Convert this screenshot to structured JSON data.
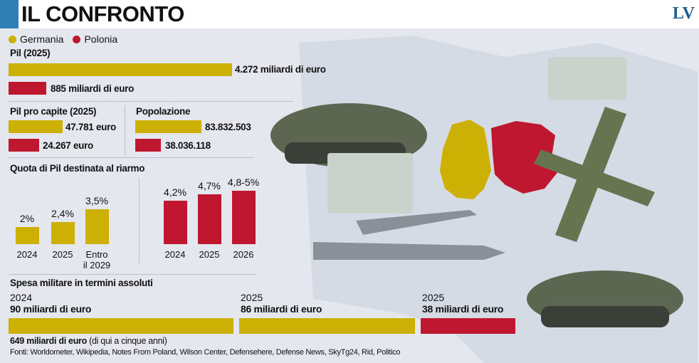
{
  "header": {
    "title": "IL CONFRONTO",
    "logo": "LV"
  },
  "legend": [
    {
      "label": "Germania",
      "color": "#cdb004"
    },
    {
      "label": "Polonia",
      "color": "#c01731"
    }
  ],
  "chart_data": [
    {
      "type": "bar",
      "title": "Pil (2025)",
      "categories": [
        "Germania",
        "Polonia"
      ],
      "values": [
        4272,
        885
      ],
      "unit": "miliardi di euro",
      "labels": [
        "4.272 miliardi di euro",
        "885 miliardi di euro"
      ]
    },
    {
      "type": "bar",
      "title": "Pil pro capite (2025)",
      "categories": [
        "Germania",
        "Polonia"
      ],
      "values": [
        47781,
        24267
      ],
      "labels": [
        "47.781 euro",
        "24.267 euro"
      ]
    },
    {
      "type": "bar",
      "title": "Popolazione",
      "categories": [
        "Germania",
        "Polonia"
      ],
      "values": [
        83832503,
        38036118
      ],
      "labels": [
        "83.832.503",
        "38.036.118"
      ]
    },
    {
      "type": "bar",
      "title": "Quota di Pil destinata al riarmo",
      "series": [
        {
          "name": "Germania",
          "categories": [
            "2024",
            "2025",
            "Entro il 2029"
          ],
          "values": [
            2,
            2.4,
            3.5
          ],
          "labels": [
            "2%",
            "2,4%",
            "3,5%"
          ]
        },
        {
          "name": "Polonia",
          "categories": [
            "2024",
            "2025",
            "2026"
          ],
          "values": [
            4.2,
            4.7,
            5
          ],
          "labels": [
            "4,2%",
            "4,7%",
            "4,8-5%"
          ]
        }
      ]
    },
    {
      "type": "bar",
      "title": "Spesa militare in termini assoluti",
      "items": [
        {
          "country": "Germania",
          "year": "2024",
          "value": 90,
          "label": "90 miliardi di euro"
        },
        {
          "country": "Germania",
          "year": "2025",
          "value": 86,
          "label": "86 miliardi di euro"
        },
        {
          "country": "Polonia",
          "year": "2025",
          "value": 38,
          "label": "38 miliardi di euro"
        }
      ],
      "note_bold": "649 miliardi di euro",
      "note": "(di qui a cinque anni)"
    }
  ],
  "sources": "Fonti: Worldometer, Wikipedia, Notes From Poland, Wilson Center, Defensehere, Defense News, SkyTg24, Rid, Politico"
}
